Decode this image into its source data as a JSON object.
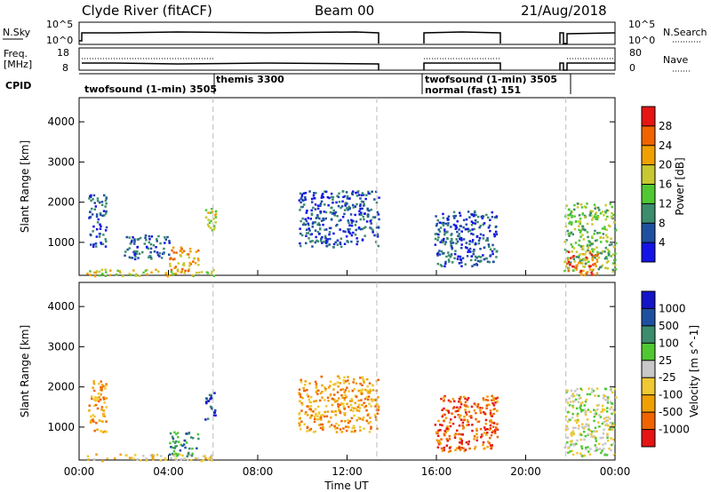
{
  "header": {
    "station": "Clyde River (fitACF)",
    "beam": "Beam 00",
    "date": "21/Aug/2018"
  },
  "sky_panel": {
    "left_label": "N.Sky",
    "right_label": "N.Search",
    "left_ticks": [
      "10^5",
      "10^0"
    ],
    "right_ticks": [
      "10^5",
      "10^0"
    ]
  },
  "freq_panel": {
    "left_label_line1": "Freq.",
    "left_label_line2": "[MHz]",
    "right_label": "Nave",
    "left_ticks": [
      "18",
      "8"
    ],
    "right_ticks": [
      "80",
      "0"
    ]
  },
  "cpid_label": "CPID",
  "cpid_entries": [
    {
      "text": "twofsound (1-min) 3505"
    },
    {
      "text": "themis 3300"
    },
    {
      "text": "twofsound (1-min) 3505"
    },
    {
      "text": "normal (fast) 151"
    }
  ],
  "colors": {
    "power": [
      "#1414e6",
      "#1e50a0",
      "#3c8c6e",
      "#50c832",
      "#c8c832",
      "#f0a000",
      "#f06400",
      "#e61414"
    ],
    "velocity": [
      "#e61414",
      "#f06400",
      "#f0a000",
      "#f0c832",
      "#c8c8c8",
      "#50c832",
      "#3c8c6e",
      "#1e50a0",
      "#1414c8"
    ]
  },
  "chart_data": [
    {
      "type": "heatmap",
      "name": "Power",
      "xlabel": "",
      "ylabel": "Slant Range [km]",
      "x_ticks": [],
      "y_ticks": [
        "1000",
        "2000",
        "3000",
        "4000"
      ],
      "xlim_hours": [
        0,
        24
      ],
      "ylim_km": [
        180,
        4600
      ],
      "colorbar": {
        "label": "Power [dB]",
        "ticks": [
          "4",
          "8",
          "12",
          "16",
          "20",
          "24",
          "28"
        ],
        "range": [
          0,
          30
        ]
      },
      "echo_regions": [
        {
          "t_start": 0.3,
          "t_end": 6.0,
          "r_min": 180,
          "r_max": 350,
          "level": 4
        },
        {
          "t_start": 0.4,
          "t_end": 1.2,
          "r_min": 900,
          "r_max": 2200,
          "level": 1
        },
        {
          "t_start": 2.0,
          "t_end": 4.0,
          "r_min": 600,
          "r_max": 1200,
          "level": 1
        },
        {
          "t_start": 4.0,
          "t_end": 5.3,
          "r_min": 300,
          "r_max": 900,
          "level": 5
        },
        {
          "t_start": 5.6,
          "t_end": 6.1,
          "r_min": 1200,
          "r_max": 1900,
          "level": 4
        },
        {
          "t_start": 9.8,
          "t_end": 13.4,
          "r_min": 900,
          "r_max": 2300,
          "level": 1
        },
        {
          "t_start": 15.9,
          "t_end": 18.7,
          "r_min": 400,
          "r_max": 1800,
          "level": 1
        },
        {
          "t_start": 21.7,
          "t_end": 24.0,
          "r_min": 300,
          "r_max": 2000,
          "level": 3
        },
        {
          "t_start": 21.8,
          "t_end": 23.2,
          "r_min": 200,
          "r_max": 800,
          "level": 6
        }
      ]
    },
    {
      "type": "heatmap",
      "name": "Velocity",
      "xlabel": "Time UT",
      "ylabel": "Slant Range [km]",
      "x_ticks": [
        "00:00",
        "04:00",
        "08:00",
        "12:00",
        "16:00",
        "20:00",
        "00:00"
      ],
      "y_ticks": [
        "1000",
        "2000",
        "3000",
        "4000"
      ],
      "xlim_hours": [
        0,
        24
      ],
      "ylim_km": [
        180,
        4600
      ],
      "colorbar": {
        "label": "Velocity [m s^-1]",
        "ticks": [
          "-1000",
          "-500",
          "-100",
          "-25",
          "25",
          "100",
          "500",
          "1000"
        ],
        "range": [
          -2000,
          2000
        ]
      },
      "echo_regions": [
        {
          "t_start": 0.3,
          "t_end": 6.0,
          "r_min": 180,
          "r_max": 350,
          "level": 3
        },
        {
          "t_start": 0.4,
          "t_end": 1.2,
          "r_min": 900,
          "r_max": 2200,
          "level": 2
        },
        {
          "t_start": 4.0,
          "t_end": 5.3,
          "r_min": 300,
          "r_max": 900,
          "level": 6
        },
        {
          "t_start": 5.6,
          "t_end": 6.1,
          "r_min": 1200,
          "r_max": 1900,
          "level": 7
        },
        {
          "t_start": 9.8,
          "t_end": 13.4,
          "r_min": 900,
          "r_max": 2300,
          "level": 2
        },
        {
          "t_start": 15.9,
          "t_end": 18.7,
          "r_min": 400,
          "r_max": 1800,
          "level": 1
        },
        {
          "t_start": 21.7,
          "t_end": 24.0,
          "r_min": 300,
          "r_max": 2000,
          "level": 4
        }
      ]
    }
  ]
}
